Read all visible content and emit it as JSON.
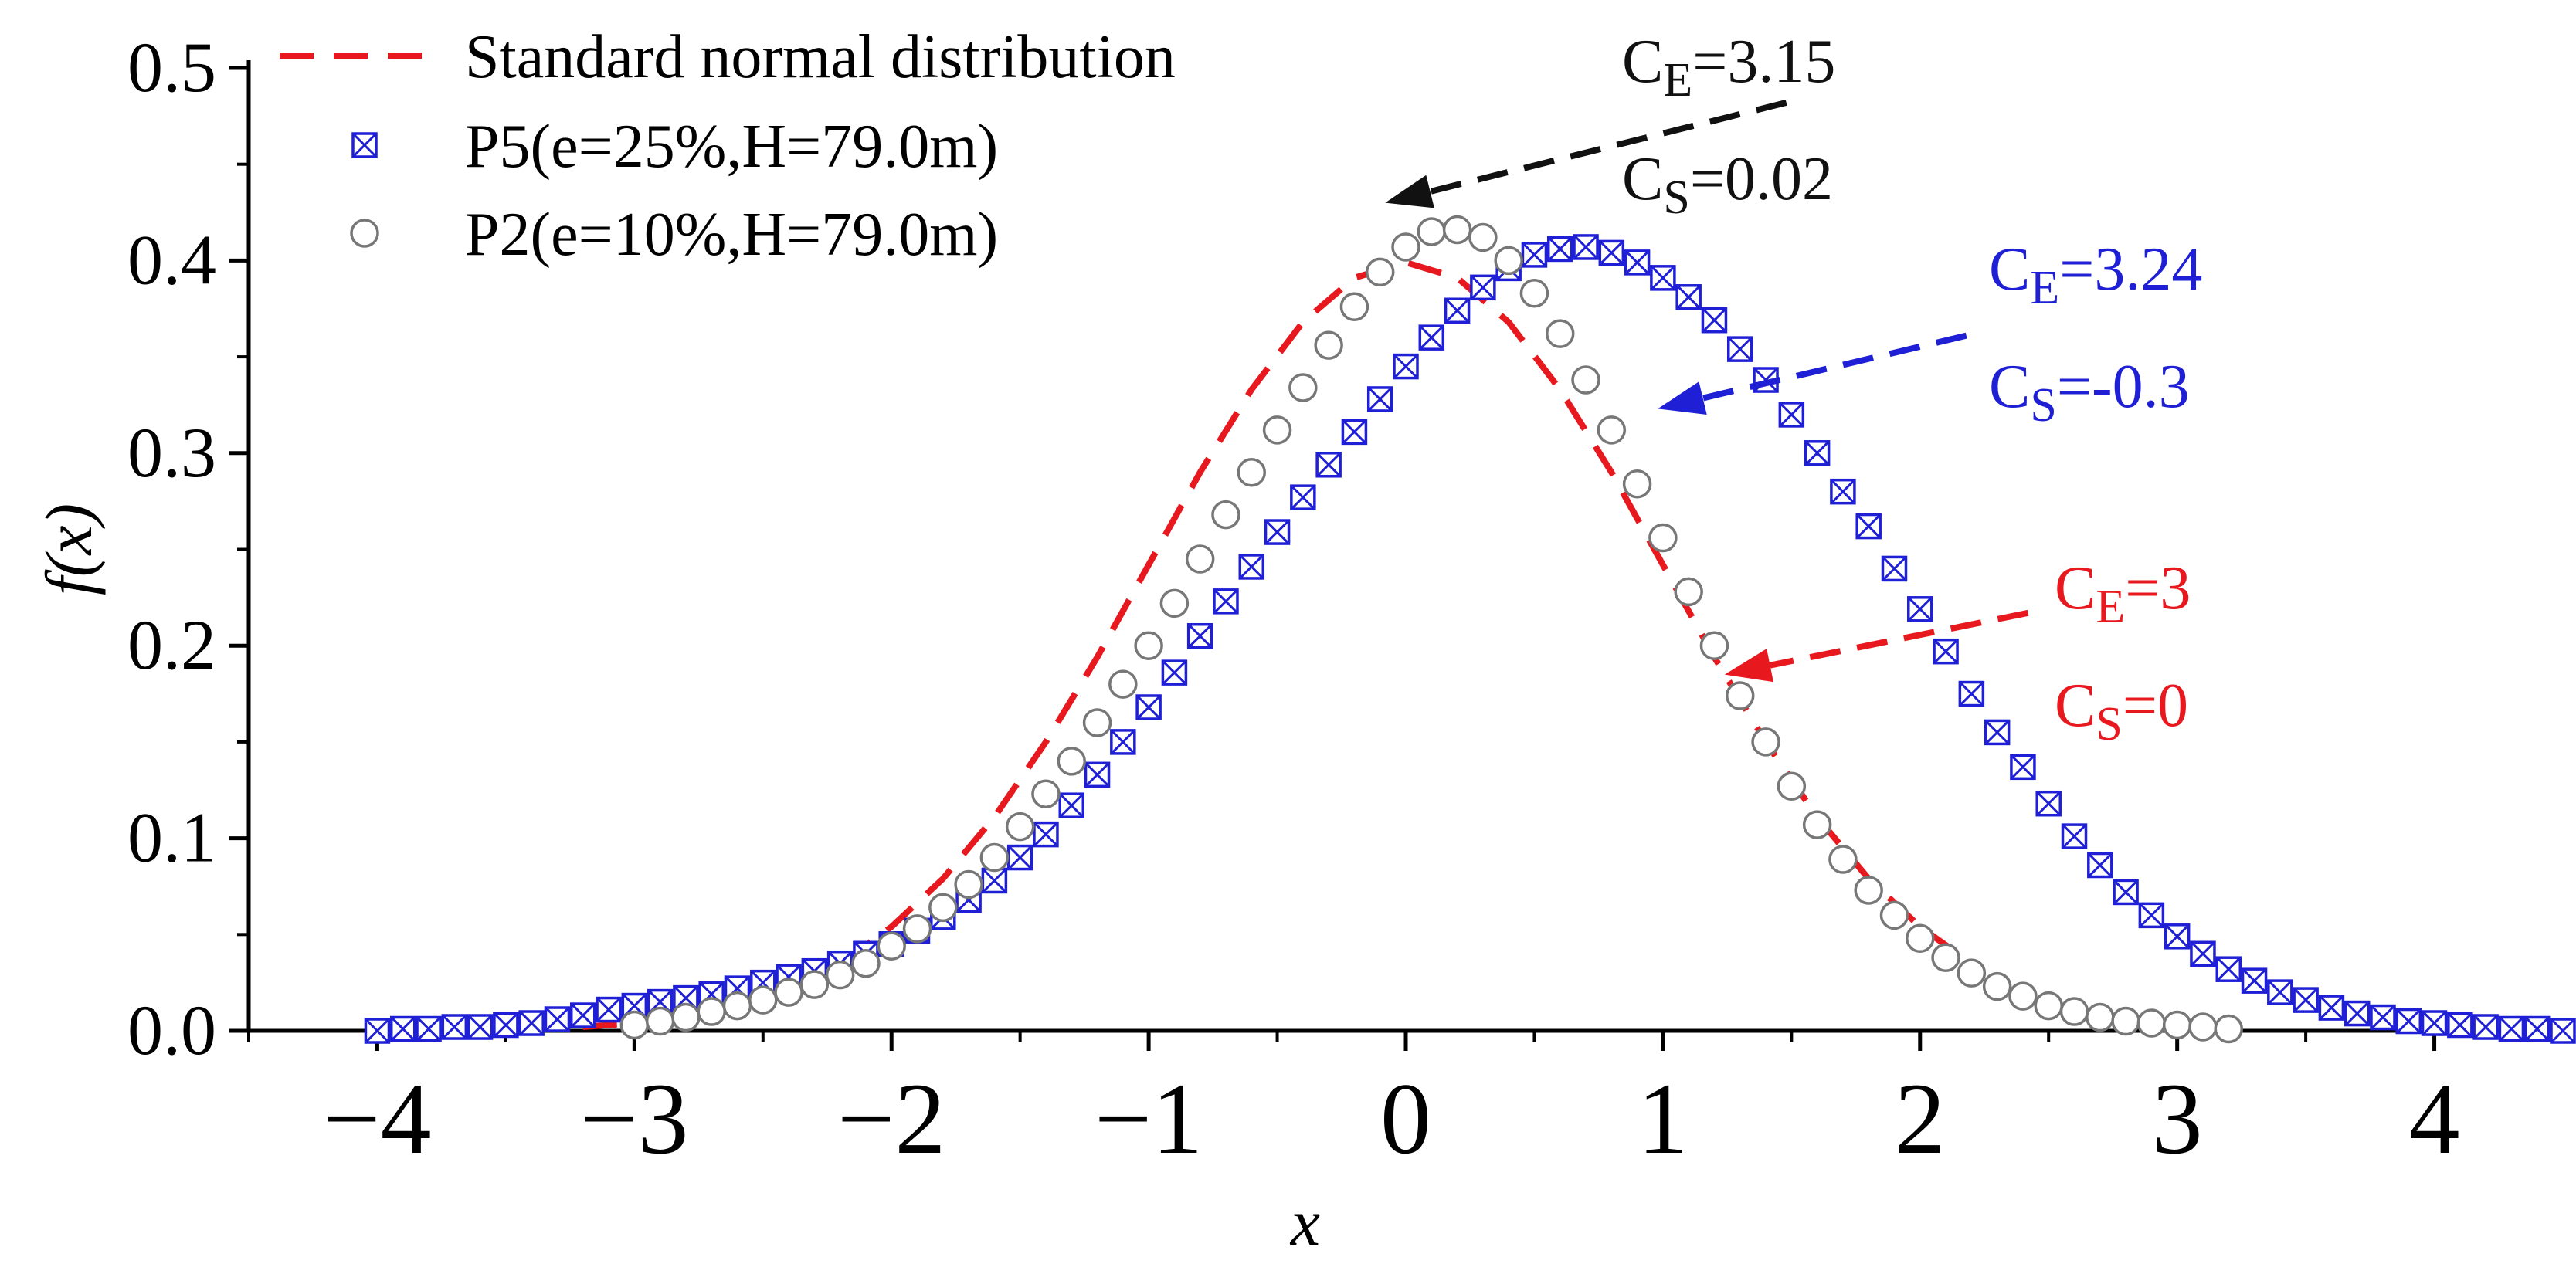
{
  "chart_data": {
    "type": "scatter",
    "xlabel": "x",
    "ylabel": "f(x)",
    "xlim": [
      -4.5,
      4.5
    ],
    "ylim": [
      0,
      0.5
    ],
    "x_ticks": [
      -4,
      -3,
      -2,
      -1,
      0,
      1,
      2,
      3,
      4
    ],
    "x_tick_labels": [
      "−4",
      "−3",
      "−2",
      "−1",
      "0",
      "1",
      "2",
      "3",
      "4"
    ],
    "y_ticks": [
      0,
      0.1,
      0.2,
      0.3,
      0.4,
      0.5
    ],
    "y_tick_labels": [
      "0.0",
      "0.1",
      "0.2",
      "0.3",
      "0.4",
      "0.5"
    ],
    "grid": false,
    "legend_position": "top-left",
    "series": [
      {
        "name": "Standard normal distribution",
        "kind": "dashed-line",
        "color": "#e8191e",
        "points": [
          [
            -3.2,
            0.002
          ],
          [
            -3.0,
            0.004
          ],
          [
            -2.8,
            0.008
          ],
          [
            -2.6,
            0.014
          ],
          [
            -2.4,
            0.022
          ],
          [
            -2.2,
            0.035
          ],
          [
            -2.0,
            0.054
          ],
          [
            -1.8,
            0.079
          ],
          [
            -1.6,
            0.111
          ],
          [
            -1.4,
            0.15
          ],
          [
            -1.2,
            0.194
          ],
          [
            -1.0,
            0.242
          ],
          [
            -0.8,
            0.29
          ],
          [
            -0.6,
            0.333
          ],
          [
            -0.4,
            0.368
          ],
          [
            -0.2,
            0.391
          ],
          [
            0.0,
            0.399
          ],
          [
            0.2,
            0.391
          ],
          [
            0.4,
            0.368
          ],
          [
            0.6,
            0.333
          ],
          [
            0.8,
            0.29
          ],
          [
            1.0,
            0.242
          ],
          [
            1.2,
            0.194
          ],
          [
            1.4,
            0.15
          ],
          [
            1.6,
            0.111
          ],
          [
            1.8,
            0.079
          ],
          [
            2.0,
            0.054
          ],
          [
            2.2,
            0.035
          ]
        ]
      },
      {
        "name": "P5(e=25%,H=79.0m)",
        "kind": "boxed-x-marker",
        "color": "#1f1fd6",
        "points": [
          [
            -4.0,
            0.0
          ],
          [
            -3.9,
            0.001
          ],
          [
            -3.8,
            0.001
          ],
          [
            -3.7,
            0.002
          ],
          [
            -3.6,
            0.002
          ],
          [
            -3.5,
            0.003
          ],
          [
            -3.4,
            0.004
          ],
          [
            -3.3,
            0.006
          ],
          [
            -3.2,
            0.008
          ],
          [
            -3.1,
            0.011
          ],
          [
            -3.0,
            0.013
          ],
          [
            -2.9,
            0.015
          ],
          [
            -2.8,
            0.017
          ],
          [
            -2.7,
            0.019
          ],
          [
            -2.6,
            0.022
          ],
          [
            -2.5,
            0.025
          ],
          [
            -2.4,
            0.028
          ],
          [
            -2.3,
            0.031
          ],
          [
            -2.2,
            0.035
          ],
          [
            -2.1,
            0.04
          ],
          [
            -2.0,
            0.045
          ],
          [
            -1.9,
            0.052
          ],
          [
            -1.8,
            0.059
          ],
          [
            -1.7,
            0.068
          ],
          [
            -1.6,
            0.078
          ],
          [
            -1.5,
            0.09
          ],
          [
            -1.4,
            0.102
          ],
          [
            -1.3,
            0.117
          ],
          [
            -1.2,
            0.133
          ],
          [
            -1.1,
            0.15
          ],
          [
            -1.0,
            0.168
          ],
          [
            -0.9,
            0.186
          ],
          [
            -0.8,
            0.205
          ],
          [
            -0.7,
            0.223
          ],
          [
            -0.6,
            0.241
          ],
          [
            -0.5,
            0.259
          ],
          [
            -0.4,
            0.277
          ],
          [
            -0.3,
            0.294
          ],
          [
            -0.2,
            0.311
          ],
          [
            -0.1,
            0.328
          ],
          [
            0.0,
            0.345
          ],
          [
            0.1,
            0.36
          ],
          [
            0.2,
            0.374
          ],
          [
            0.3,
            0.386
          ],
          [
            0.4,
            0.396
          ],
          [
            0.5,
            0.403
          ],
          [
            0.6,
            0.406
          ],
          [
            0.7,
            0.407
          ],
          [
            0.8,
            0.404
          ],
          [
            0.9,
            0.399
          ],
          [
            1.0,
            0.391
          ],
          [
            1.1,
            0.381
          ],
          [
            1.2,
            0.369
          ],
          [
            1.3,
            0.354
          ],
          [
            1.4,
            0.338
          ],
          [
            1.5,
            0.32
          ],
          [
            1.6,
            0.3
          ],
          [
            1.7,
            0.28
          ],
          [
            1.8,
            0.262
          ],
          [
            1.9,
            0.24
          ],
          [
            2.0,
            0.219
          ],
          [
            2.1,
            0.197
          ],
          [
            2.2,
            0.175
          ],
          [
            2.3,
            0.155
          ],
          [
            2.4,
            0.137
          ],
          [
            2.5,
            0.118
          ],
          [
            2.6,
            0.101
          ],
          [
            2.7,
            0.086
          ],
          [
            2.8,
            0.072
          ],
          [
            2.9,
            0.06
          ],
          [
            3.0,
            0.049
          ],
          [
            3.1,
            0.04
          ],
          [
            3.2,
            0.032
          ],
          [
            3.3,
            0.026
          ],
          [
            3.4,
            0.02
          ],
          [
            3.5,
            0.016
          ],
          [
            3.6,
            0.012
          ],
          [
            3.7,
            0.009
          ],
          [
            3.8,
            0.007
          ],
          [
            3.9,
            0.005
          ],
          [
            4.0,
            0.004
          ],
          [
            4.1,
            0.003
          ],
          [
            4.2,
            0.002
          ],
          [
            4.3,
            0.001
          ],
          [
            4.4,
            0.001
          ],
          [
            4.5,
            0.0
          ]
        ]
      },
      {
        "name": "P2(e=10%,H=79.0m)",
        "kind": "open-circle-marker",
        "color": "#777777",
        "points": [
          [
            -3.0,
            0.003
          ],
          [
            -2.9,
            0.005
          ],
          [
            -2.8,
            0.007
          ],
          [
            -2.7,
            0.01
          ],
          [
            -2.6,
            0.013
          ],
          [
            -2.5,
            0.016
          ],
          [
            -2.4,
            0.02
          ],
          [
            -2.3,
            0.024
          ],
          [
            -2.2,
            0.029
          ],
          [
            -2.1,
            0.035
          ],
          [
            -2.0,
            0.044
          ],
          [
            -1.9,
            0.053
          ],
          [
            -1.8,
            0.064
          ],
          [
            -1.7,
            0.076
          ],
          [
            -1.6,
            0.09
          ],
          [
            -1.5,
            0.106
          ],
          [
            -1.4,
            0.123
          ],
          [
            -1.3,
            0.14
          ],
          [
            -1.2,
            0.16
          ],
          [
            -1.1,
            0.18
          ],
          [
            -1.0,
            0.2
          ],
          [
            -0.9,
            0.222
          ],
          [
            -0.8,
            0.245
          ],
          [
            -0.7,
            0.268
          ],
          [
            -0.6,
            0.29
          ],
          [
            -0.5,
            0.312
          ],
          [
            -0.4,
            0.334
          ],
          [
            -0.3,
            0.356
          ],
          [
            -0.2,
            0.376
          ],
          [
            -0.1,
            0.394
          ],
          [
            0.0,
            0.407
          ],
          [
            0.1,
            0.415
          ],
          [
            0.2,
            0.416
          ],
          [
            0.3,
            0.412
          ],
          [
            0.4,
            0.4
          ],
          [
            0.5,
            0.383
          ],
          [
            0.6,
            0.362
          ],
          [
            0.7,
            0.338
          ],
          [
            0.8,
            0.312
          ],
          [
            0.9,
            0.284
          ],
          [
            1.0,
            0.256
          ],
          [
            1.1,
            0.228
          ],
          [
            1.2,
            0.2
          ],
          [
            1.3,
            0.174
          ],
          [
            1.4,
            0.15
          ],
          [
            1.5,
            0.127
          ],
          [
            1.6,
            0.107
          ],
          [
            1.7,
            0.089
          ],
          [
            1.8,
            0.073
          ],
          [
            1.9,
            0.06
          ],
          [
            2.0,
            0.048
          ],
          [
            2.1,
            0.038
          ],
          [
            2.2,
            0.03
          ],
          [
            2.3,
            0.023
          ],
          [
            2.4,
            0.018
          ],
          [
            2.5,
            0.013
          ],
          [
            2.6,
            0.01
          ],
          [
            2.7,
            0.007
          ],
          [
            2.8,
            0.005
          ],
          [
            2.9,
            0.004
          ],
          [
            3.0,
            0.003
          ],
          [
            3.1,
            0.002
          ],
          [
            3.2,
            0.001
          ]
        ]
      }
    ],
    "annotations": [
      {
        "color": "#111111",
        "line1_main": "C",
        "line1_sub": "E",
        "line1_rest": "=3.15",
        "line2_main": "C",
        "line2_sub": "S",
        "line2_rest": "=0.02",
        "arrow_from": [
          1.48,
          0.482
        ],
        "arrow_to": [
          -0.08,
          0.43
        ]
      },
      {
        "color": "#1f1fd6",
        "line1_main": "C",
        "line1_sub": "E",
        "line1_rest": "=3.24",
        "line2_main": "C",
        "line2_sub": "S",
        "line2_rest": "=-0.3",
        "arrow_from": [
          2.18,
          0.361
        ],
        "arrow_to": [
          0.98,
          0.323
        ]
      },
      {
        "color": "#e8191e",
        "line1_main": "C",
        "line1_sub": "E",
        "line1_rest": "=3",
        "line2_main": "C",
        "line2_sub": "S",
        "line2_rest": "=0",
        "arrow_from": [
          2.42,
          0.217
        ],
        "arrow_to": [
          1.24,
          0.185
        ]
      }
    ]
  }
}
